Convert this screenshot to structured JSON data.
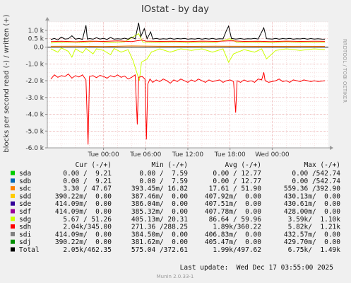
{
  "chart_data": {
    "type": "line",
    "title": "IOstat - by day",
    "ylabel": "blocks per second read (-) / written (+)",
    "side_label": "RRDTOOL / TOBI OETIKER",
    "ylim": [
      -6000,
      1500
    ],
    "y_ticks": [
      {
        "value": 1000,
        "label": "1.0 k"
      },
      {
        "value": 500,
        "label": "0.5 k"
      },
      {
        "value": 0,
        "label": "0.0"
      },
      {
        "value": -1000,
        "label": "-1.0 k"
      },
      {
        "value": -2000,
        "label": "-2.0 k"
      },
      {
        "value": -3000,
        "label": "-3.0 k"
      },
      {
        "value": -4000,
        "label": "-4.0 k"
      },
      {
        "value": -5000,
        "label": "-5.0 k"
      },
      {
        "value": -6000,
        "label": "-6.0 k"
      }
    ],
    "x_range_hours": [
      -8,
      32
    ],
    "x_ticks": [
      {
        "hour": 0,
        "label": "Tue 00:00"
      },
      {
        "hour": 6,
        "label": "Tue 06:00"
      },
      {
        "hour": 12,
        "label": "Tue 12:00"
      },
      {
        "hour": 18,
        "label": "Tue 18:00"
      },
      {
        "hour": 24,
        "label": "Wed 00:00"
      }
    ],
    "grid": true,
    "legend_header": {
      "cur": "Cur (-/+)",
      "min": "Min (-/+)",
      "avg": "Avg (-/+)",
      "max": "Max (-/+)"
    },
    "series": [
      {
        "name": "sda",
        "color": "#00cc00",
        "cur": "0.00 /  9.21",
        "min": "0.00 /  7.59",
        "avg": "0.00 / 12.77",
        "max": "0.00 /542.74"
      },
      {
        "name": "sdb",
        "color": "#0066b3",
        "cur": "0.00 /  9.21",
        "min": "0.00 /  7.59",
        "avg": "0.00 / 12.77",
        "max": "0.00 /542.74"
      },
      {
        "name": "sdc",
        "color": "#ff8000",
        "cur": "3.30 / 47.67",
        "min": "393.45m/ 16.82",
        "avg": "17.61 / 51.90",
        "max": "559.36 /392.90"
      },
      {
        "name": "sdd",
        "color": "#ffcc00",
        "cur": "390.22m/  0.00",
        "min": "387.46m/  0.00",
        "avg": "407.92m/  0.00",
        "max": "430.13m/  0.00"
      },
      {
        "name": "sde",
        "color": "#330099",
        "cur": "414.09m/  0.00",
        "min": "386.04m/  0.00",
        "avg": "407.51m/  0.00",
        "max": "430.61m/  0.00"
      },
      {
        "name": "sdf",
        "color": "#990099",
        "cur": "414.09m/  0.00",
        "min": "385.32m/  0.00",
        "avg": "407.78m/  0.00",
        "max": "428.00m/  0.00"
      },
      {
        "name": "sdg",
        "color": "#ccff00",
        "cur": "5.67 / 51.26",
        "min": "405.13m/ 20.31",
        "avg": "86.64 / 59.96",
        "max": "3.59k/  1.10k"
      },
      {
        "name": "sdh",
        "color": "#ff0000",
        "cur": "2.04k/345.00",
        "min": "271.36 /288.25",
        "avg": "1.89k/360.22",
        "max": "5.82k/  1.21k"
      },
      {
        "name": "sdi",
        "color": "#808080",
        "cur": "414.09m/  0.00",
        "min": "384.50m/  0.00",
        "avg": "406.83m/  0.00",
        "max": "432.57m/  0.00"
      },
      {
        "name": "sdj",
        "color": "#008f00",
        "cur": "390.22m/  0.00",
        "min": "381.62m/  0.00",
        "avg": "405.47m/  0.00",
        "max": "429.70m/  0.00"
      },
      {
        "name": "Total",
        "color": "#000000",
        "cur": "2.05k/462.35",
        "min": "575.04 /372.61",
        "avg": "1.99k/497.62",
        "max": "6.75k/  1.49k"
      }
    ],
    "traces": {
      "sdh_read": [
        [
          -7.5,
          -1900
        ],
        [
          -7,
          -1650
        ],
        [
          -6.5,
          -1800
        ],
        [
          -6,
          -1700
        ],
        [
          -5.5,
          -1750
        ],
        [
          -5,
          -1600
        ],
        [
          -4.5,
          -1850
        ],
        [
          -4,
          -1700
        ],
        [
          -3.5,
          -1780
        ],
        [
          -3,
          -1650
        ],
        [
          -2.5,
          -1950
        ],
        [
          -2.2,
          -5800
        ],
        [
          -2,
          -1750
        ],
        [
          -1.5,
          -1700
        ],
        [
          -1,
          -1820
        ],
        [
          -0.5,
          -1680
        ],
        [
          0,
          -1750
        ],
        [
          0.5,
          -1850
        ],
        [
          1,
          -1700
        ],
        [
          1.5,
          -1780
        ],
        [
          2,
          -1650
        ],
        [
          2.5,
          -1800
        ],
        [
          3,
          -1720
        ],
        [
          3.5,
          -1900
        ],
        [
          4,
          -1800
        ],
        [
          4.5,
          -1650
        ],
        [
          4.8,
          -4600
        ],
        [
          5,
          -1800
        ],
        [
          5.5,
          -1750
        ],
        [
          5.9,
          -1900
        ],
        [
          6.1,
          -5500
        ],
        [
          6.3,
          -2200
        ],
        [
          6.6,
          -1900
        ],
        [
          7,
          -2100
        ],
        [
          7.5,
          -1950
        ],
        [
          8,
          -2050
        ],
        [
          8.5,
          -1900
        ],
        [
          9,
          -2000
        ],
        [
          9.5,
          -2150
        ],
        [
          10,
          -1950
        ],
        [
          10.5,
          -2050
        ],
        [
          11,
          -1900
        ],
        [
          11.5,
          -2000
        ],
        [
          12,
          -2100
        ],
        [
          12.5,
          -1950
        ],
        [
          13,
          -2050
        ],
        [
          13.5,
          -1900
        ],
        [
          14,
          -2000
        ],
        [
          14.5,
          -2100
        ],
        [
          15,
          -1950
        ],
        [
          15.5,
          -2050
        ],
        [
          16,
          -2000
        ],
        [
          16.5,
          -1950
        ],
        [
          17,
          -2100
        ],
        [
          17.5,
          -2000
        ],
        [
          18,
          -1950
        ],
        [
          18.5,
          -2050
        ],
        [
          18.8,
          -3900
        ],
        [
          19,
          -2000
        ],
        [
          19.5,
          -2100
        ],
        [
          20,
          -1950
        ],
        [
          20.5,
          -2050
        ],
        [
          21,
          -2000
        ],
        [
          21.5,
          -2100
        ],
        [
          22,
          -1900
        ],
        [
          22.5,
          -1950
        ],
        [
          22.8,
          -1500
        ],
        [
          23,
          -2000
        ],
        [
          23.5,
          -2100
        ],
        [
          24,
          -2050
        ],
        [
          24.5,
          -2000
        ],
        [
          25,
          -1900
        ],
        [
          25.5,
          -2050
        ],
        [
          26,
          -2000
        ],
        [
          26.5,
          -2100
        ],
        [
          27,
          -1950
        ],
        [
          27.5,
          -2000
        ],
        [
          28,
          -2050
        ],
        [
          28.5,
          -1950
        ],
        [
          29,
          -2000
        ],
        [
          29.5,
          -2050
        ],
        [
          30,
          -2000
        ],
        [
          30.5,
          -2050
        ],
        [
          31.5,
          -2000
        ]
      ],
      "sdg_read": [
        [
          -7.5,
          -100
        ],
        [
          -6.5,
          -300
        ],
        [
          -6,
          -50
        ],
        [
          -5,
          -250
        ],
        [
          -4.5,
          -600
        ],
        [
          -4,
          -100
        ],
        [
          -3,
          -350
        ],
        [
          -2.5,
          -80
        ],
        [
          -1.5,
          -400
        ],
        [
          -1,
          -100
        ],
        [
          0,
          -200
        ],
        [
          1,
          -450
        ],
        [
          1.5,
          -80
        ],
        [
          2.5,
          -300
        ],
        [
          3.5,
          -150
        ],
        [
          4.2,
          -800
        ],
        [
          5.1,
          -2000
        ],
        [
          5.4,
          -900
        ],
        [
          6.2,
          -700
        ],
        [
          6.8,
          -300
        ],
        [
          8,
          -100
        ],
        [
          9.5,
          -300
        ],
        [
          11,
          -100
        ],
        [
          12.5,
          -200
        ],
        [
          14,
          -100
        ],
        [
          15.5,
          -300
        ],
        [
          17,
          -100
        ],
        [
          17.8,
          -900
        ],
        [
          18.5,
          -400
        ],
        [
          20,
          -150
        ],
        [
          21.5,
          -300
        ],
        [
          22.5,
          -100
        ],
        [
          23.2,
          -700
        ],
        [
          24.5,
          -200
        ],
        [
          26,
          -100
        ],
        [
          28,
          -200
        ],
        [
          30,
          -100
        ],
        [
          31.5,
          -150
        ]
      ],
      "sdg_write": [
        [
          -7.5,
          250
        ],
        [
          -5,
          300
        ],
        [
          -3,
          280
        ],
        [
          -1,
          350
        ],
        [
          1,
          260
        ],
        [
          3,
          320
        ],
        [
          5,
          800
        ],
        [
          5.6,
          300
        ],
        [
          8,
          280
        ],
        [
          10,
          310
        ],
        [
          12,
          270
        ],
        [
          14,
          300
        ],
        [
          16,
          280
        ],
        [
          18,
          500
        ],
        [
          19,
          280
        ],
        [
          22,
          300
        ],
        [
          24,
          270
        ],
        [
          26,
          320
        ],
        [
          28,
          280
        ],
        [
          30,
          300
        ],
        [
          31.5,
          290
        ]
      ],
      "sdh_write": [
        [
          -7.5,
          330
        ],
        [
          -6,
          350
        ],
        [
          -4,
          320
        ],
        [
          -2,
          360
        ],
        [
          0,
          340
        ],
        [
          2,
          370
        ],
        [
          4,
          330
        ],
        [
          5.5,
          420
        ],
        [
          6,
          360
        ],
        [
          8,
          340
        ],
        [
          10,
          350
        ],
        [
          12,
          330
        ],
        [
          14,
          360
        ],
        [
          16,
          340
        ],
        [
          18,
          380
        ],
        [
          20,
          340
        ],
        [
          22,
          350
        ],
        [
          24,
          330
        ],
        [
          26,
          360
        ],
        [
          28,
          340
        ],
        [
          30,
          350
        ],
        [
          31.5,
          345
        ]
      ],
      "sdc_write": [
        [
          -7.5,
          50
        ],
        [
          -4,
          60
        ],
        [
          0,
          40
        ],
        [
          4,
          70
        ],
        [
          8,
          50
        ],
        [
          12,
          45
        ],
        [
          16,
          55
        ],
        [
          20,
          50
        ],
        [
          24,
          48
        ],
        [
          28,
          52
        ],
        [
          31.5,
          48
        ]
      ],
      "total_write": [
        [
          -7.5,
          450
        ],
        [
          -7,
          520
        ],
        [
          -6.5,
          430
        ],
        [
          -6,
          600
        ],
        [
          -5.5,
          480
        ],
        [
          -5,
          500
        ],
        [
          -4.5,
          680
        ],
        [
          -4,
          470
        ],
        [
          -3.5,
          520
        ],
        [
          -3,
          460
        ],
        [
          -2.5,
          1300
        ],
        [
          -2.3,
          480
        ],
        [
          -2,
          510
        ],
        [
          -1.5,
          470
        ],
        [
          -1,
          560
        ],
        [
          -0.5,
          480
        ],
        [
          0,
          520
        ],
        [
          0.5,
          460
        ],
        [
          1,
          580
        ],
        [
          1.5,
          470
        ],
        [
          2,
          500
        ],
        [
          2.5,
          480
        ],
        [
          3,
          530
        ],
        [
          3.5,
          470
        ],
        [
          4,
          600
        ],
        [
          4.5,
          490
        ],
        [
          5,
          1450
        ],
        [
          5.3,
          620
        ],
        [
          5.8,
          1100
        ],
        [
          6.2,
          500
        ],
        [
          6.7,
          900
        ],
        [
          7,
          480
        ],
        [
          7.5,
          520
        ],
        [
          8,
          470
        ],
        [
          8.5,
          500
        ],
        [
          9,
          480
        ],
        [
          9.5,
          530
        ],
        [
          10,
          470
        ],
        [
          10.5,
          510
        ],
        [
          11,
          490
        ],
        [
          11.5,
          520
        ],
        [
          12,
          470
        ],
        [
          12.5,
          500
        ],
        [
          13,
          480
        ],
        [
          13.5,
          520
        ],
        [
          14,
          470
        ],
        [
          14.5,
          510
        ],
        [
          15,
          480
        ],
        [
          15.5,
          520
        ],
        [
          16,
          470
        ],
        [
          16.5,
          500
        ],
        [
          17,
          490
        ],
        [
          17.5,
          1000
        ],
        [
          17.8,
          1250
        ],
        [
          18.2,
          520
        ],
        [
          18.8,
          480
        ],
        [
          19.5,
          510
        ],
        [
          20,
          470
        ],
        [
          20.5,
          500
        ],
        [
          21,
          490
        ],
        [
          21.5,
          520
        ],
        [
          22,
          480
        ],
        [
          22.8,
          1150
        ],
        [
          23.2,
          500
        ],
        [
          24,
          480
        ],
        [
          24.5,
          520
        ],
        [
          25,
          470
        ],
        [
          25.5,
          510
        ],
        [
          26,
          490
        ],
        [
          26.5,
          520
        ],
        [
          27,
          470
        ],
        [
          27.5,
          500
        ],
        [
          28,
          490
        ],
        [
          28.5,
          520
        ],
        [
          29,
          470
        ],
        [
          29.5,
          510
        ],
        [
          30,
          480
        ],
        [
          30.5,
          500
        ],
        [
          31,
          480
        ],
        [
          31.5,
          470
        ]
      ]
    }
  },
  "footer": {
    "last_update": "Last update:  Wed Dec 17 03:55:00 2025",
    "version": "Munin 2.0.33-1"
  }
}
